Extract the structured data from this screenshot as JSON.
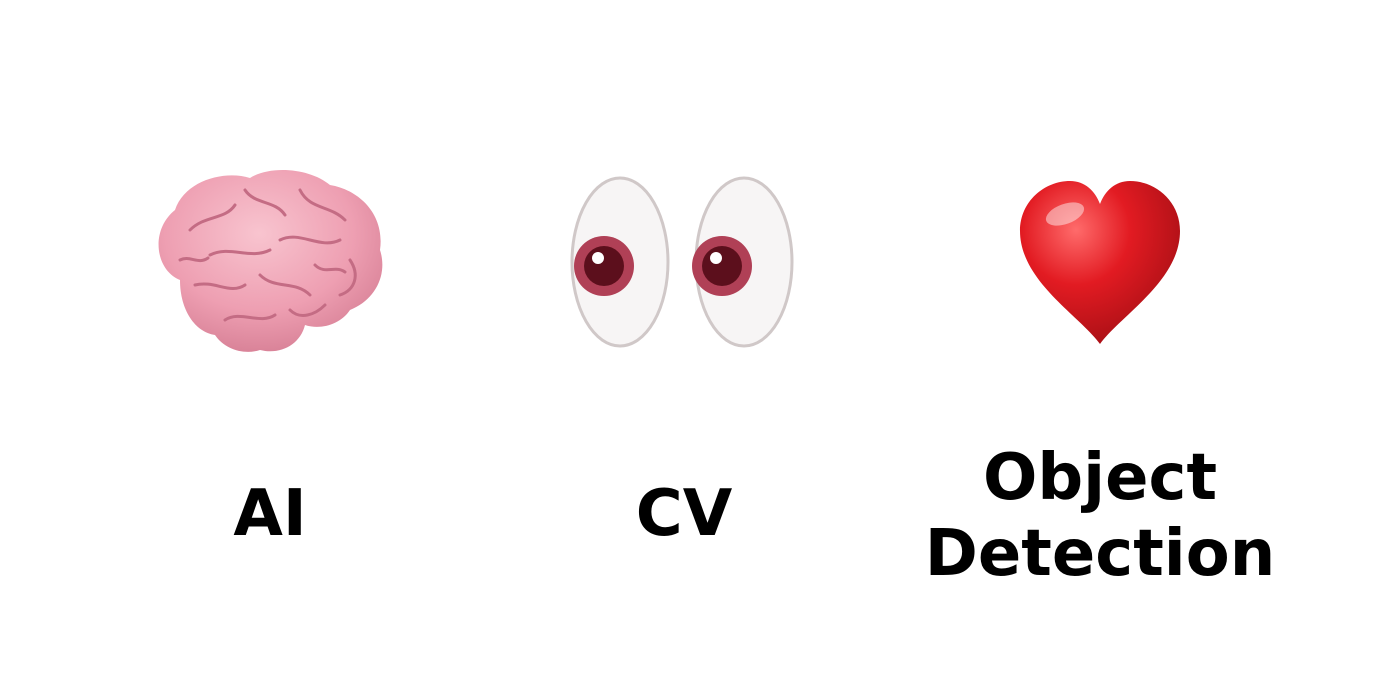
{
  "items": [
    {
      "label": "AI",
      "icon": "brain-icon"
    },
    {
      "label": "CV",
      "icon": "eyes-icon"
    },
    {
      "label_lines": [
        "Object",
        "Detection"
      ],
      "icon": "heart-icon"
    }
  ],
  "colors": {
    "background": "#ffffff",
    "text": "#000000",
    "brain": "#f0a0b0",
    "eye_white": "#f7f5f5",
    "pupil": "#5c0f1c",
    "heart": "#e21b22"
  }
}
